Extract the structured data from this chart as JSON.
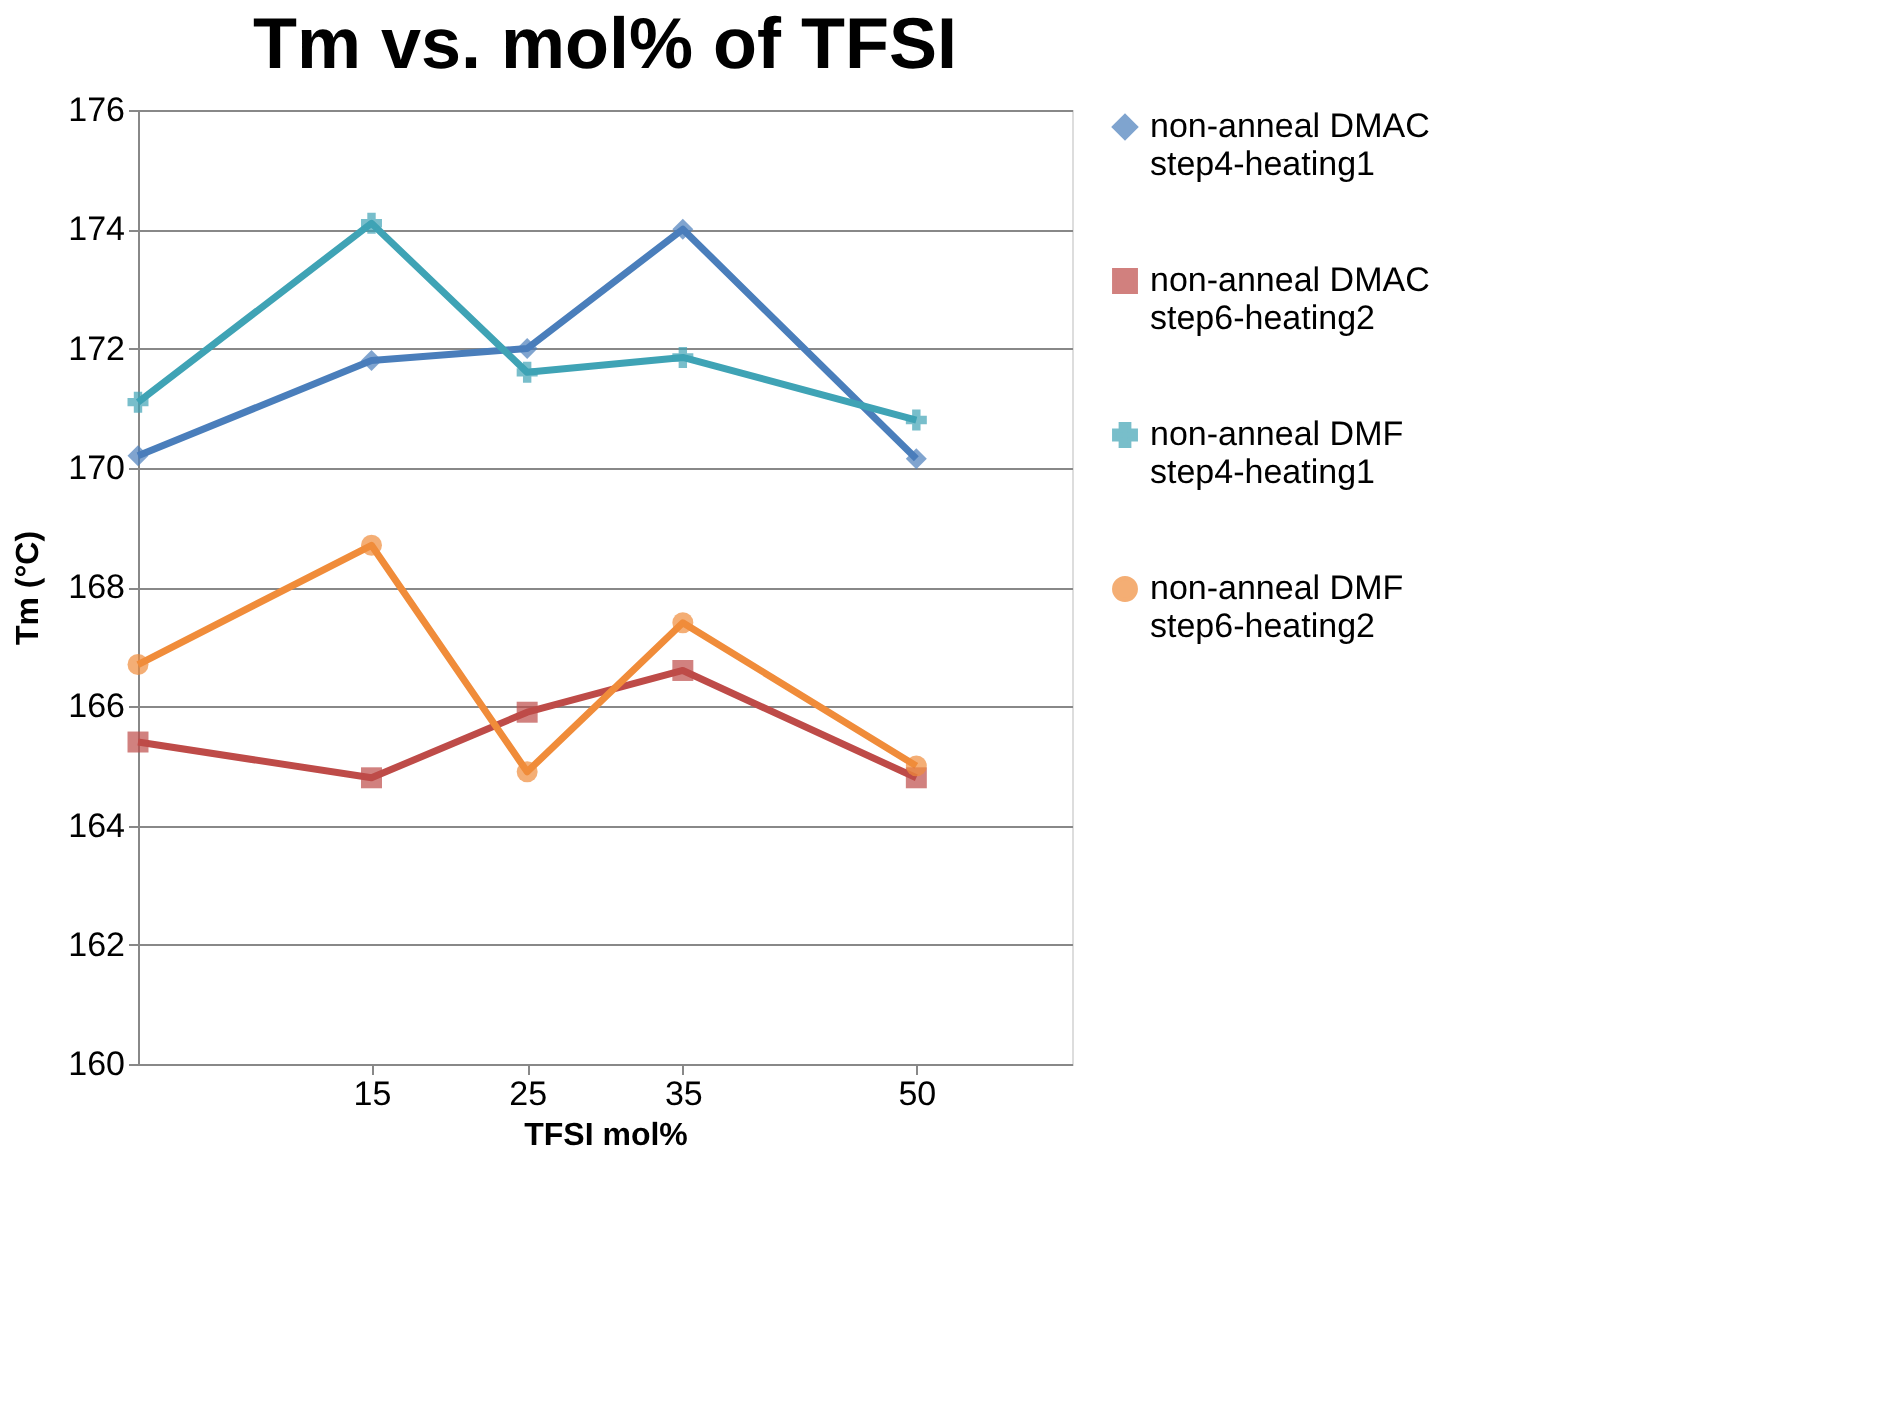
{
  "chart_data": {
    "type": "line",
    "title": "Tm vs. mol% of TFSI",
    "xlabel": "TFSI mol%",
    "ylabel": "Tm (°C)",
    "x": [
      0,
      15,
      25,
      35,
      50
    ],
    "xlim": [
      0,
      60
    ],
    "xticks": [
      15,
      25,
      35,
      50
    ],
    "ylim": [
      160,
      176
    ],
    "yticks": [
      160,
      162,
      164,
      166,
      168,
      170,
      172,
      174,
      176
    ],
    "grid": "y",
    "legend": "right",
    "line_style": "solid",
    "series": [
      {
        "name": "non-anneal DMAC step4-heating1",
        "color": "#4a7ebb",
        "marker": "diamond",
        "values": [
          170.2,
          171.8,
          172.0,
          174.0,
          170.15
        ]
      },
      {
        "name": "non-anneal DMAC step6-heating2",
        "color": "#be4b48",
        "marker": "square",
        "values": [
          165.4,
          164.8,
          165.9,
          166.6,
          164.8
        ]
      },
      {
        "name": "non-anneal DMF step4-heating1",
        "color": "#3fa3b5",
        "marker": "cross",
        "values": [
          171.1,
          174.1,
          171.6,
          171.85,
          170.8
        ]
      },
      {
        "name": "non-anneal DMF step6-heating2",
        "color": "#f08c3a",
        "marker": "circle",
        "values": [
          166.7,
          168.7,
          164.9,
          167.4,
          165.0
        ]
      }
    ]
  }
}
